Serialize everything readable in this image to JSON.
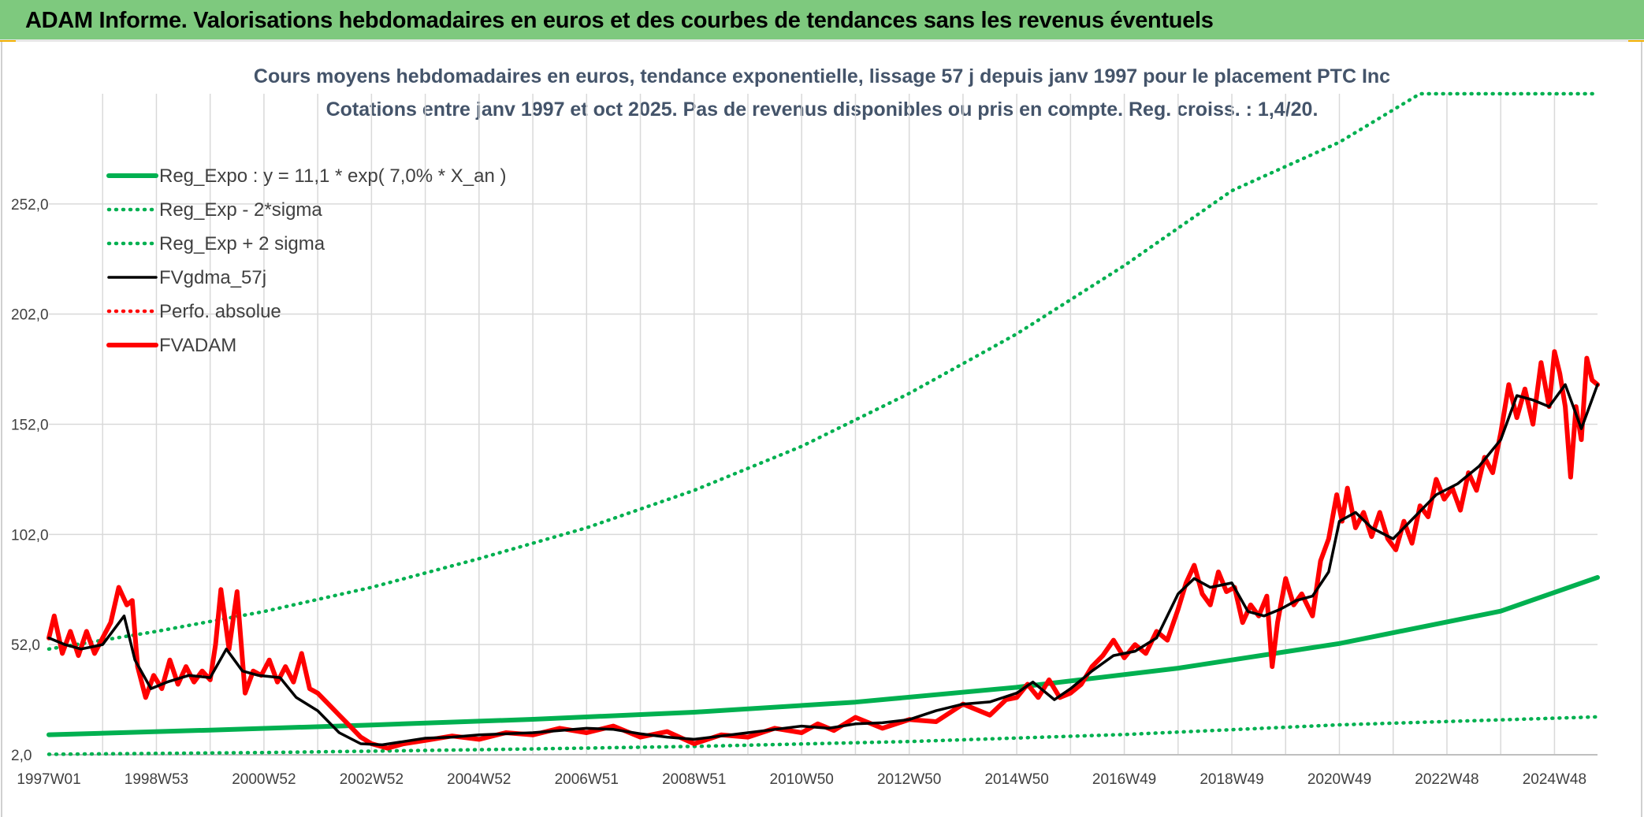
{
  "header": {
    "title": "ADAM Informe. Valorisations hebdomadaires en euros et des courbes de tendances sans les revenus éventuels"
  },
  "colors": {
    "banner": "#7ec97e",
    "trend_green": "#00b050",
    "price_red": "#ff0000",
    "smooth_black": "#000000",
    "grid": "#d9d9d9"
  },
  "chart_data": {
    "type": "line",
    "title_line1": "Cours moyens hebdomadaires en euros, tendance exponentielle, lissage 57 j depuis janv 1997 pour le placement PTC Inc",
    "title_line2": "Cotations entre janv 1997 et oct 2025. Pas de revenus disponibles ou pris en compte. Reg. croiss. : 1,4/20.",
    "x_range": [
      1997.0,
      2025.8
    ],
    "ylim": [
      2.0,
      302.0
    ],
    "y_ticks": [
      2.0,
      52.0,
      102.0,
      152.0,
      202.0,
      252.0
    ],
    "y_tick_labels": [
      "2,0",
      "52,0",
      "102,0",
      "152,0",
      "202,0",
      "252,0"
    ],
    "x_ticks": [
      1997.0,
      1999.0,
      2001.0,
      2003.0,
      2005.0,
      2007.0,
      2009.0,
      2011.0,
      2013.0,
      2015.0,
      2017.0,
      2019.0,
      2021.0,
      2023.0,
      2025.0
    ],
    "x_tick_labels": [
      "1997W01",
      "1998W53",
      "2000W52",
      "2002W52",
      "2004W52",
      "2006W51",
      "2008W51",
      "2010W50",
      "2012W50",
      "2014W50",
      "2016W49",
      "2018W49",
      "2020W49",
      "2022W48",
      "2024W48"
    ],
    "x_minor_ticks": [
      1998.0,
      2000.0,
      2002.0,
      2004.0,
      2006.0,
      2008.0,
      2010.0,
      2012.0,
      2014.0,
      2016.0,
      2018.0,
      2020.0,
      2022.0,
      2024.0
    ],
    "series": [
      {
        "name": "Reg_Expo : y = 11,1 * exp( 7,0% *  X_an )",
        "style": "solid-thick",
        "color": "#00b050",
        "x": [
          1997.0,
          2000.0,
          2003.0,
          2006.0,
          2009.0,
          2012.0,
          2015.0,
          2018.0,
          2021.0,
          2024.0,
          2025.8
        ],
        "y": [
          11.1,
          13.2,
          15.5,
          18.1,
          21.3,
          25.9,
          32.6,
          41.3,
          52.5,
          67.2,
          82.5
        ]
      },
      {
        "name": "Reg_Exp - 2*sigma",
        "style": "dotted",
        "color": "#00b050",
        "x": [
          1997.0,
          2001.0,
          2005.0,
          2009.0,
          2013.0,
          2017.0,
          2021.0,
          2025.8
        ],
        "y": [
          2.2,
          3.0,
          4.3,
          5.8,
          8.0,
          11.2,
          15.6,
          19.2
        ]
      },
      {
        "name": "Reg_Exp + 2 sigma",
        "style": "dotted",
        "color": "#00b050",
        "x": [
          1997.0,
          1999.0,
          2001.0,
          2003.0,
          2005.0,
          2007.0,
          2009.0,
          2011.0,
          2013.0,
          2015.0,
          2017.0,
          2019.0,
          2021.0,
          2022.5,
          2025.8
        ],
        "y": [
          50.0,
          58.0,
          67.0,
          78.0,
          91.0,
          105.0,
          122.0,
          142.0,
          166.0,
          193.0,
          224.0,
          258.0,
          280.0,
          302.0,
          302.0
        ]
      },
      {
        "name": "FVgdma_57j",
        "style": "solid",
        "color": "#000000",
        "x": [
          1997.0,
          1997.3,
          1997.6,
          1998.0,
          1998.4,
          1998.6,
          1998.9,
          1999.2,
          1999.6,
          2000.0,
          2000.3,
          2000.6,
          2000.9,
          2001.3,
          2001.6,
          2002.0,
          2002.4,
          2002.8,
          2003.2,
          2003.6,
          2004.0,
          2004.5,
          2005.0,
          2005.5,
          2006.0,
          2006.5,
          2007.0,
          2007.5,
          2008.0,
          2008.5,
          2009.0,
          2009.5,
          2010.0,
          2010.5,
          2011.0,
          2011.5,
          2012.0,
          2012.5,
          2013.0,
          2013.5,
          2014.0,
          2014.5,
          2015.0,
          2015.3,
          2015.7,
          2016.0,
          2016.4,
          2016.8,
          2017.2,
          2017.6,
          2018.0,
          2018.3,
          2018.6,
          2019.0,
          2019.3,
          2019.6,
          2019.9,
          2020.2,
          2020.5,
          2020.8,
          2021.0,
          2021.3,
          2021.6,
          2022.0,
          2022.4,
          2022.8,
          2023.2,
          2023.6,
          2024.0,
          2024.3,
          2024.6,
          2024.9,
          2025.2,
          2025.5,
          2025.8
        ],
        "y": [
          55.0,
          52.0,
          50.0,
          52.0,
          65.0,
          45.0,
          32.0,
          35.0,
          38.0,
          37.0,
          50.0,
          40.0,
          38.0,
          37.0,
          28.0,
          22.0,
          12.0,
          7.0,
          6.5,
          8.0,
          9.5,
          10.0,
          11.0,
          11.5,
          12.0,
          13.0,
          14.0,
          13.5,
          11.5,
          10.0,
          9.0,
          10.5,
          12.0,
          13.5,
          15.0,
          14.0,
          16.0,
          16.5,
          18.0,
          22.0,
          25.0,
          26.0,
          30.0,
          35.0,
          27.0,
          32.0,
          40.0,
          47.0,
          49.0,
          55.0,
          75.0,
          82.0,
          78.0,
          80.0,
          67.0,
          65.0,
          68.0,
          72.0,
          74.0,
          85.0,
          108.0,
          112.0,
          105.0,
          100.0,
          110.0,
          120.0,
          125.0,
          133.0,
          145.0,
          165.0,
          163.0,
          160.0,
          170.0,
          150.0,
          170.0
        ]
      },
      {
        "name": "Perfo. absolue",
        "style": "dotted",
        "color": "#ff0000",
        "x": [],
        "y": []
      },
      {
        "name": "FVADAM",
        "style": "solid-thick",
        "color": "#ff0000",
        "x": [
          1997.0,
          1997.1,
          1997.25,
          1997.4,
          1997.55,
          1997.7,
          1997.85,
          1998.0,
          1998.15,
          1998.3,
          1998.45,
          1998.55,
          1998.65,
          1998.8,
          1998.95,
          1999.1,
          1999.25,
          1999.4,
          1999.55,
          1999.7,
          1999.85,
          2000.0,
          2000.1,
          2000.2,
          2000.35,
          2000.5,
          2000.65,
          2000.8,
          2000.95,
          2001.1,
          2001.25,
          2001.4,
          2001.55,
          2001.7,
          2001.85,
          2002.0,
          2002.2,
          2002.4,
          2002.6,
          2002.8,
          2003.0,
          2003.3,
          2003.6,
          2004.0,
          2004.5,
          2005.0,
          2005.5,
          2006.0,
          2006.5,
          2007.0,
          2007.5,
          2008.0,
          2008.5,
          2009.0,
          2009.5,
          2010.0,
          2010.5,
          2011.0,
          2011.3,
          2011.6,
          2012.0,
          2012.5,
          2013.0,
          2013.5,
          2014.0,
          2014.5,
          2014.8,
          2015.0,
          2015.2,
          2015.4,
          2015.6,
          2015.8,
          2016.0,
          2016.2,
          2016.4,
          2016.6,
          2016.8,
          2017.0,
          2017.2,
          2017.4,
          2017.6,
          2017.8,
          2018.0,
          2018.15,
          2018.3,
          2018.45,
          2018.6,
          2018.75,
          2018.9,
          2019.05,
          2019.2,
          2019.35,
          2019.5,
          2019.65,
          2019.75,
          2019.85,
          2020.0,
          2020.15,
          2020.3,
          2020.5,
          2020.65,
          2020.8,
          2020.95,
          2021.05,
          2021.15,
          2021.3,
          2021.45,
          2021.6,
          2021.75,
          2021.9,
          2022.05,
          2022.2,
          2022.35,
          2022.5,
          2022.65,
          2022.8,
          2022.95,
          2023.1,
          2023.25,
          2023.4,
          2023.55,
          2023.7,
          2023.85,
          2024.0,
          2024.15,
          2024.3,
          2024.45,
          2024.6,
          2024.75,
          2024.9,
          2025.0,
          2025.1,
          2025.2,
          2025.3,
          2025.4,
          2025.5,
          2025.6,
          2025.7,
          2025.8
        ],
        "y": [
          55.0,
          65.0,
          48.0,
          58.0,
          47.0,
          58.0,
          48.0,
          55.0,
          62.0,
          78.0,
          70.0,
          72.0,
          42.0,
          28.0,
          38.0,
          32.0,
          45.0,
          34.0,
          42.0,
          35.0,
          40.0,
          36.0,
          52.0,
          77.0,
          50.0,
          76.0,
          30.0,
          40.0,
          38.0,
          45.0,
          35.0,
          42.0,
          35.0,
          48.0,
          32.0,
          30.0,
          25.0,
          20.0,
          15.0,
          10.0,
          7.0,
          5.0,
          7.0,
          8.5,
          10.5,
          9.0,
          12.0,
          11.0,
          14.0,
          12.0,
          15.0,
          10.0,
          12.5,
          7.0,
          11.0,
          10.0,
          14.0,
          12.0,
          16.0,
          13.0,
          19.0,
          14.0,
          18.0,
          17.0,
          25.0,
          20.0,
          27.0,
          28.0,
          34.0,
          28.0,
          36.0,
          28.0,
          30.0,
          34.0,
          42.0,
          47.0,
          54.0,
          46.0,
          52.0,
          48.0,
          58.0,
          54.0,
          68.0,
          80.0,
          88.0,
          75.0,
          70.0,
          85.0,
          76.0,
          78.0,
          62.0,
          70.0,
          65.0,
          74.0,
          42.0,
          62.0,
          82.0,
          70.0,
          75.0,
          65.0,
          90.0,
          100.0,
          120.0,
          108.0,
          123.0,
          105.0,
          112.0,
          101.0,
          112.0,
          100.0,
          95.0,
          108.0,
          98.0,
          115.0,
          110.0,
          127.0,
          118.0,
          123.0,
          113.0,
          130.0,
          122.0,
          137.0,
          130.0,
          148.0,
          170.0,
          155.0,
          168.0,
          152.0,
          180.0,
          160.0,
          185.0,
          175.0,
          160.0,
          128.0,
          160.0,
          145.0,
          182.0,
          172.0,
          170.0
        ]
      }
    ],
    "legend_position": "top-left"
  }
}
